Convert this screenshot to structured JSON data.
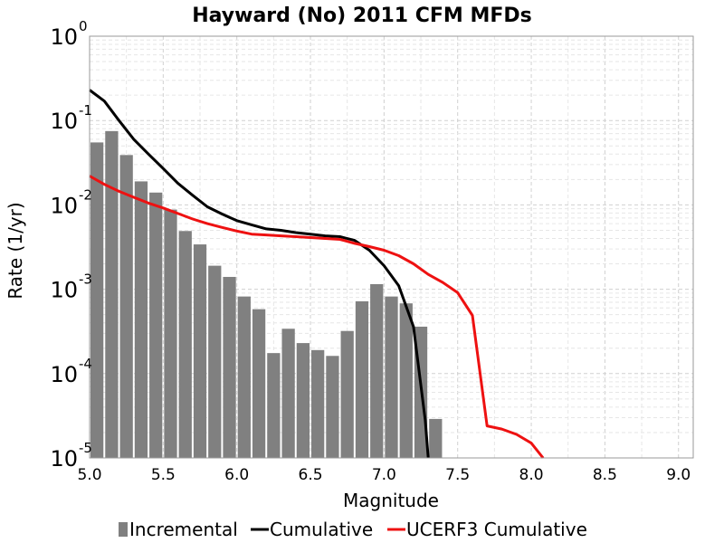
{
  "chart_data": {
    "type": "bar+line",
    "title": "Hayward (No) 2011 CFM MFDs",
    "xlabel": "Magnitude",
    "ylabel": "Rate (1/yr)",
    "xlim": [
      5.0,
      9.1
    ],
    "ylim_log10": [
      -5,
      0
    ],
    "yscale": "log",
    "grid": true,
    "legend_position": "bottom",
    "x_ticks": [
      "5.0",
      "5.5",
      "6.0",
      "6.5",
      "7.0",
      "7.5",
      "8.0",
      "8.5",
      "9.0"
    ],
    "y_ticks": [
      {
        "base": "10",
        "exp": "0"
      },
      {
        "base": "10",
        "exp": "-1"
      },
      {
        "base": "10",
        "exp": "-2"
      },
      {
        "base": "10",
        "exp": "-3"
      },
      {
        "base": "10",
        "exp": "-4"
      },
      {
        "base": "10",
        "exp": "-5"
      }
    ],
    "bin_width": 0.1,
    "series": [
      {
        "name": "Incremental",
        "type": "bar",
        "color": "#808080",
        "x": [
          5.05,
          5.15,
          5.25,
          5.35,
          5.45,
          5.55,
          5.65,
          5.75,
          5.85,
          5.95,
          6.05,
          6.15,
          6.25,
          6.35,
          6.45,
          6.55,
          6.65,
          6.75,
          6.85,
          6.95,
          7.05,
          7.15,
          7.25,
          7.35
        ],
        "y": [
          0.055,
          0.075,
          0.039,
          0.019,
          0.014,
          0.0088,
          0.0049,
          0.0034,
          0.0019,
          0.0014,
          0.00082,
          0.00058,
          0.000175,
          0.00034,
          0.00023,
          0.00019,
          0.000162,
          0.00032,
          0.00072,
          0.00115,
          0.00082,
          0.00068,
          0.00036,
          2.9e-05
        ]
      },
      {
        "name": "Cumulative",
        "type": "line",
        "color": "#000000",
        "x": [
          5.0,
          5.1,
          5.2,
          5.3,
          5.4,
          5.5,
          5.6,
          5.7,
          5.8,
          5.9,
          6.0,
          6.1,
          6.2,
          6.3,
          6.4,
          6.5,
          6.6,
          6.7,
          6.8,
          6.9,
          7.0,
          7.1,
          7.2,
          7.28,
          7.3
        ],
        "y": [
          0.23,
          0.17,
          0.1,
          0.06,
          0.04,
          0.027,
          0.018,
          0.013,
          0.0095,
          0.0078,
          0.0065,
          0.0058,
          0.0052,
          0.005,
          0.0047,
          0.0045,
          0.0043,
          0.0042,
          0.0038,
          0.0029,
          0.0019,
          0.0011,
          0.00036,
          2.8e-05,
          1e-05
        ]
      },
      {
        "name": "UCERF3 Cumulative",
        "type": "line",
        "color": "#ee1111",
        "x": [
          5.0,
          5.1,
          5.2,
          5.3,
          5.4,
          5.5,
          5.6,
          5.7,
          5.8,
          5.9,
          6.0,
          6.1,
          6.2,
          6.3,
          6.4,
          6.5,
          6.6,
          6.7,
          6.8,
          6.9,
          7.0,
          7.1,
          7.2,
          7.3,
          7.4,
          7.5,
          7.6,
          7.7,
          7.8,
          7.9,
          8.0,
          8.08
        ],
        "y": [
          0.022,
          0.0175,
          0.0145,
          0.0123,
          0.0105,
          0.0092,
          0.0079,
          0.0068,
          0.006,
          0.0054,
          0.0049,
          0.0045,
          0.0044,
          0.0043,
          0.0042,
          0.0041,
          0.004,
          0.0039,
          0.0035,
          0.0032,
          0.0029,
          0.0025,
          0.002,
          0.0015,
          0.0012,
          0.00091,
          0.00049,
          2.4e-05,
          2.2e-05,
          1.9e-05,
          1.5e-05,
          1e-05
        ]
      }
    ]
  }
}
